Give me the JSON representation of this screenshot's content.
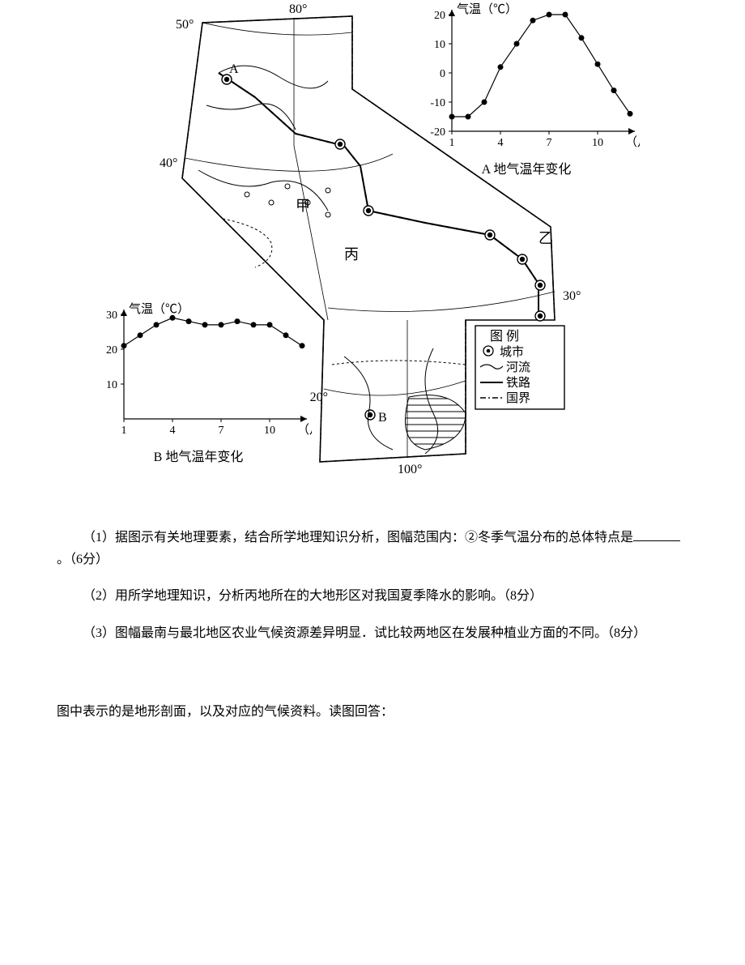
{
  "figure": {
    "chartA": {
      "type": "line",
      "title_y": "气温（℃）",
      "title_x": "（月）",
      "subtitle": "A 地气温年变化",
      "x": [
        1,
        2,
        3,
        4,
        5,
        6,
        7,
        8,
        9,
        10,
        11,
        12
      ],
      "y": [
        -15,
        -15,
        -10,
        2,
        10,
        18,
        20,
        20,
        12,
        3,
        -6,
        -14
      ],
      "xlim": [
        1,
        12
      ],
      "ylim": [
        -20,
        20
      ],
      "xticks": [
        1,
        4,
        7,
        10
      ],
      "yticks": [
        -20,
        -10,
        0,
        10,
        20
      ],
      "line_color": "#000000",
      "marker": "circle",
      "marker_fill": "#000000",
      "marker_size": 3.5,
      "line_width": 1.2,
      "axis_color": "#000000",
      "font_size_label": 15,
      "font_size_tick": 14
    },
    "chartB": {
      "type": "line",
      "title_y": "气温（℃）",
      "title_x": "（月）",
      "subtitle": "B 地气温年变化",
      "x": [
        1,
        2,
        3,
        4,
        5,
        6,
        7,
        8,
        9,
        10,
        11,
        12
      ],
      "y": [
        21,
        24,
        27,
        29,
        28,
        27,
        27,
        28,
        27,
        27,
        24,
        21
      ],
      "xlim": [
        1,
        12
      ],
      "ylim": [
        0,
        30
      ],
      "xticks": [
        1,
        4,
        7,
        10
      ],
      "yticks": [
        10,
        20,
        30
      ],
      "line_color": "#000000",
      "marker": "circle",
      "marker_fill": "#000000",
      "marker_size": 3.5,
      "line_width": 1.2,
      "axis_color": "#000000",
      "font_size_label": 15,
      "font_size_tick": 14
    },
    "map": {
      "lon_labels": {
        "80": "80°",
        "100": "100°"
      },
      "lat_labels": {
        "50": "50°",
        "40": "40°",
        "30": "30°",
        "20": "20°"
      },
      "labels": {
        "A": "A",
        "B": "B",
        "jia": "甲",
        "yi": "乙",
        "bing": "丙"
      },
      "legend_title": "图 例",
      "legend_items": [
        {
          "symbol": "city-icon",
          "label": "城市"
        },
        {
          "symbol": "river-icon",
          "label": "河流"
        },
        {
          "symbol": "rail-icon",
          "label": "铁路"
        },
        {
          "symbol": "border-icon",
          "label": "国界"
        }
      ],
      "colors": {
        "line": "#000000",
        "background": "#ffffff",
        "hatch": "#000000"
      },
      "line_widths": {
        "border": 1.5,
        "river": 1.0,
        "rail": 2.0,
        "latlon": 0.8
      }
    }
  },
  "questions": {
    "q1_pre": "（1）据图示有关地理要素，结合所学地理知识分析，图幅范围内：②冬季气温分布的总体特点是",
    "q1_post": "。（6分）",
    "q2": "（2）用所学地理知识，分析丙地所在的大地形区对我国夏季降水的影响。（8分）",
    "q3": "（3）图幅最南与最北地区农业气候资源差异明显．试比较两地区在发展种植业方面的不同。（8分）"
  },
  "extra_line": "图中表示的是地形剖面，以及对应的气候资料。读图回答："
}
